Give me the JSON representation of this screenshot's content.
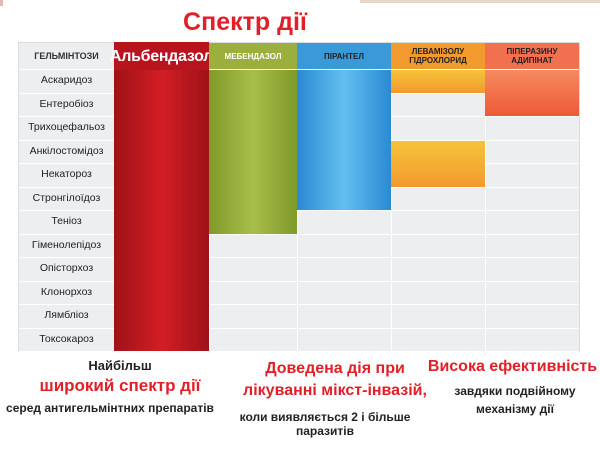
{
  "title": "Спектр дії",
  "table": {
    "columns": [
      {
        "key": "first",
        "label": "ГЕЛЬМІНТОЗИ"
      },
      {
        "key": "albend",
        "label": "Альбендазол"
      },
      {
        "key": "mebend",
        "label": "МЕБЕНДАЗОЛ"
      },
      {
        "key": "pirant",
        "label": "ПІРАНТЕЛ"
      },
      {
        "key": "levami",
        "label": "ЛЕВАМІЗОЛУ ГІДРОХЛОРИД"
      },
      {
        "key": "pipera",
        "label": "ПІПЕРАЗИНУ АДИПІНАТ"
      }
    ],
    "rows": [
      {
        "label": "Аскаридоз",
        "coverage": {
          "albend": true,
          "mebend": true,
          "pirant": true,
          "levami": true,
          "pipera": true
        }
      },
      {
        "label": "Ентеробіоз",
        "coverage": {
          "albend": true,
          "mebend": true,
          "pirant": true,
          "levami": false,
          "pipera": true
        }
      },
      {
        "label": "Трихоцефальоз",
        "coverage": {
          "albend": true,
          "mebend": true,
          "pirant": true,
          "levami": false,
          "pipera": false
        }
      },
      {
        "label": "Анкілостомідоз",
        "coverage": {
          "albend": true,
          "mebend": true,
          "pirant": true,
          "levami": true,
          "pipera": false
        }
      },
      {
        "label": "Некатороз",
        "coverage": {
          "albend": true,
          "mebend": true,
          "pirant": true,
          "levami": true,
          "pipera": false
        }
      },
      {
        "label": "Стронгілоїдоз",
        "coverage": {
          "albend": true,
          "mebend": true,
          "pirant": true,
          "levami": false,
          "pipera": false
        }
      },
      {
        "label": "Теніоз",
        "coverage": {
          "albend": true,
          "mebend": true,
          "pirant": false,
          "levami": false,
          "pipera": false
        }
      },
      {
        "label": "Гіменолепідоз",
        "coverage": {
          "albend": true,
          "mebend": false,
          "pirant": false,
          "levami": false,
          "pipera": false
        }
      },
      {
        "label": "Опісторхоз",
        "coverage": {
          "albend": true,
          "mebend": false,
          "pirant": false,
          "levami": false,
          "pipera": false
        }
      },
      {
        "label": "Клонорхоз",
        "coverage": {
          "albend": true,
          "mebend": false,
          "pirant": false,
          "levami": false,
          "pipera": false
        }
      },
      {
        "label": "Лямбліоз",
        "coverage": {
          "albend": true,
          "mebend": false,
          "pirant": false,
          "levami": false,
          "pipera": false
        }
      },
      {
        "label": "Токсокароз",
        "coverage": {
          "albend": true,
          "mebend": false,
          "pirant": false,
          "levami": false,
          "pipera": false
        }
      }
    ]
  },
  "captions": {
    "c1a": "Найбільш",
    "c1b": "широкий спектр дії",
    "c1c": "серед антигельмінтних препаратів",
    "c2a": "Доведена дія при лікуванні мікст-інвазій,",
    "c2b": "коли виявляється 2 і більше паразитів",
    "c3a": "Висока ефективність",
    "c3b": "завдяки подвійному механізму дії"
  },
  "colors": {
    "accent": "#e21f26",
    "albendazole": "#b8141d",
    "mebendazole": "#9bae3e",
    "pyrantel": "#3a9ad8",
    "levamisole": "#f29a2e",
    "piperazine": "#f1704f"
  }
}
